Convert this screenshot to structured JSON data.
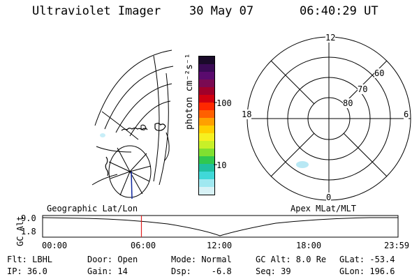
{
  "header": {
    "title": "Ultraviolet Imager",
    "date": "30 May 07",
    "time": "06:40:29 UT"
  },
  "colorbar": {
    "unit_label": "photon cm⁻²s⁻¹",
    "ticks": [
      "100",
      "10"
    ],
    "colors": [
      "#1a0a2a",
      "#3a0a55",
      "#5a0b6e",
      "#7a0a52",
      "#a0002a",
      "#d00010",
      "#ff2800",
      "#ff6000",
      "#ffa000",
      "#ffd000",
      "#f6f020",
      "#c8f028",
      "#80e030",
      "#30c850",
      "#20c0a0",
      "#40d8d8",
      "#a0e8f0",
      "#d8f2f6"
    ]
  },
  "polar_plot": {
    "labels": {
      "top": "12",
      "left": "18",
      "right": "6",
      "bottom": "0"
    },
    "lat_labels": [
      "60",
      "70",
      "80"
    ],
    "blob_color": "#b8e8f4"
  },
  "timeline": {
    "left_label": "Geographic Lat/Lon",
    "right_label": "Apex MLat/MLT",
    "y_title": "GC Alt",
    "y_top": "9.0",
    "y_bottom": "1.8",
    "x_ticks": [
      "00:00",
      "06:00",
      "12:00",
      "18:00",
      "23:59"
    ],
    "marker_color": "#e02020",
    "marker_fraction": 0.278
  },
  "info": {
    "flt": "Flt: LBHL",
    "ip": "IP: 36.0",
    "door": "Door: Open",
    "gain": "Gain: 14",
    "mode": "Mode: Normal",
    "dsp": "Dsp:    -6.8",
    "gc_alt": "GC Alt: 8.0 Re",
    "seq": "Seq: 39",
    "glat": "GLat: -53.4",
    "glon": "GLon: 196.6"
  }
}
